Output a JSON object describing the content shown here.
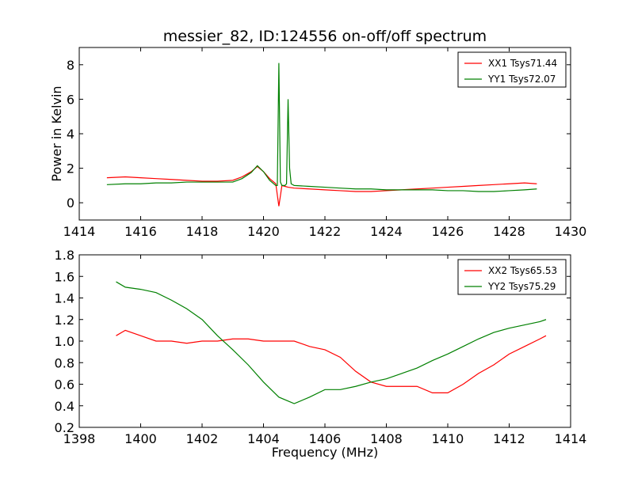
{
  "chart_data": [
    {
      "type": "line",
      "title": "messier_82, ID:124556 on-off/off spectrum",
      "xlabel": "",
      "ylabel": "Power in Kelvin",
      "xlim": [
        1414,
        1430
      ],
      "ylim": [
        -1,
        9
      ],
      "xticks": [
        1414,
        1416,
        1418,
        1420,
        1422,
        1424,
        1426,
        1428,
        1430
      ],
      "yticks": [
        0,
        2,
        4,
        6,
        8
      ],
      "legend_position": "top-right",
      "series": [
        {
          "name": "XX1 Tsys71.44",
          "color": "#ff0000",
          "x": [
            1414.9,
            1415.5,
            1416.0,
            1416.5,
            1417.0,
            1417.5,
            1418.0,
            1418.5,
            1419.0,
            1419.3,
            1419.6,
            1419.8,
            1420.0,
            1420.2,
            1420.4,
            1420.5,
            1420.6,
            1420.7,
            1420.8,
            1421.0,
            1421.5,
            1422.0,
            1422.5,
            1423.0,
            1423.5,
            1424.0,
            1424.5,
            1425.0,
            1425.5,
            1426.0,
            1426.5,
            1427.0,
            1427.5,
            1428.0,
            1428.5,
            1428.9
          ],
          "y": [
            1.45,
            1.5,
            1.45,
            1.4,
            1.35,
            1.3,
            1.25,
            1.25,
            1.3,
            1.5,
            1.8,
            2.1,
            1.8,
            1.4,
            1.1,
            -0.2,
            1.0,
            0.95,
            0.9,
            0.85,
            0.8,
            0.75,
            0.7,
            0.65,
            0.65,
            0.7,
            0.75,
            0.8,
            0.85,
            0.9,
            0.95,
            1.0,
            1.05,
            1.1,
            1.15,
            1.1
          ]
        },
        {
          "name": "YY1 Tsys72.07",
          "color": "#008000",
          "x": [
            1414.9,
            1415.5,
            1416.0,
            1416.5,
            1417.0,
            1417.5,
            1418.0,
            1418.5,
            1419.0,
            1419.3,
            1419.6,
            1419.8,
            1420.0,
            1420.2,
            1420.4,
            1420.45,
            1420.5,
            1420.55,
            1420.6,
            1420.7,
            1420.75,
            1420.8,
            1420.85,
            1420.9,
            1421.0,
            1421.5,
            1422.0,
            1422.5,
            1423.0,
            1423.5,
            1424.0,
            1424.5,
            1425.0,
            1425.5,
            1426.0,
            1426.5,
            1427.0,
            1427.5,
            1428.0,
            1428.5,
            1428.9
          ],
          "y": [
            1.05,
            1.1,
            1.1,
            1.15,
            1.15,
            1.2,
            1.2,
            1.2,
            1.2,
            1.4,
            1.75,
            2.15,
            1.8,
            1.3,
            1.0,
            1.0,
            8.1,
            1.2,
            1.0,
            1.0,
            1.1,
            6.0,
            2.0,
            1.1,
            1.0,
            0.95,
            0.9,
            0.85,
            0.8,
            0.8,
            0.75,
            0.75,
            0.75,
            0.75,
            0.7,
            0.7,
            0.65,
            0.65,
            0.7,
            0.75,
            0.8
          ]
        }
      ]
    },
    {
      "type": "line",
      "title": "",
      "xlabel": "Frequency (MHz)",
      "ylabel": "",
      "xlim": [
        1398,
        1414
      ],
      "ylim": [
        0.2,
        1.8
      ],
      "xticks": [
        1398,
        1400,
        1402,
        1404,
        1406,
        1408,
        1410,
        1412,
        1414
      ],
      "yticks": [
        0.2,
        0.4,
        0.6,
        0.8,
        1.0,
        1.2,
        1.4,
        1.6,
        1.8
      ],
      "ytick_labels": [
        "0.2",
        "0.4",
        "0.6",
        "0.8",
        "1.0",
        "1.2",
        "1.4",
        "1.6",
        "1.8"
      ],
      "legend_position": "top-right",
      "series": [
        {
          "name": "XX2 Tsys65.53",
          "color": "#ff0000",
          "x": [
            1399.2,
            1399.5,
            1400.0,
            1400.5,
            1401.0,
            1401.5,
            1402.0,
            1402.5,
            1403.0,
            1403.5,
            1404.0,
            1404.5,
            1405.0,
            1405.5,
            1406.0,
            1406.5,
            1407.0,
            1407.5,
            1408.0,
            1408.5,
            1409.0,
            1409.5,
            1410.0,
            1410.5,
            1411.0,
            1411.5,
            1412.0,
            1412.5,
            1413.0,
            1413.2
          ],
          "y": [
            1.05,
            1.1,
            1.05,
            1.0,
            1.0,
            0.98,
            1.0,
            1.0,
            1.02,
            1.02,
            1.0,
            1.0,
            1.0,
            0.95,
            0.92,
            0.85,
            0.72,
            0.62,
            0.58,
            0.58,
            0.58,
            0.52,
            0.52,
            0.6,
            0.7,
            0.78,
            0.88,
            0.95,
            1.02,
            1.05
          ]
        },
        {
          "name": "YY2 Tsys75.29",
          "color": "#008000",
          "x": [
            1399.2,
            1399.5,
            1400.0,
            1400.5,
            1401.0,
            1401.5,
            1402.0,
            1402.5,
            1403.0,
            1403.5,
            1404.0,
            1404.5,
            1405.0,
            1405.5,
            1406.0,
            1406.5,
            1407.0,
            1407.5,
            1408.0,
            1408.5,
            1409.0,
            1409.5,
            1410.0,
            1410.5,
            1411.0,
            1411.5,
            1412.0,
            1412.5,
            1413.0,
            1413.2
          ],
          "y": [
            1.55,
            1.5,
            1.48,
            1.45,
            1.38,
            1.3,
            1.2,
            1.05,
            0.92,
            0.78,
            0.62,
            0.48,
            0.42,
            0.48,
            0.55,
            0.55,
            0.58,
            0.62,
            0.65,
            0.7,
            0.75,
            0.82,
            0.88,
            0.95,
            1.02,
            1.08,
            1.12,
            1.15,
            1.18,
            1.2
          ]
        }
      ]
    }
  ]
}
